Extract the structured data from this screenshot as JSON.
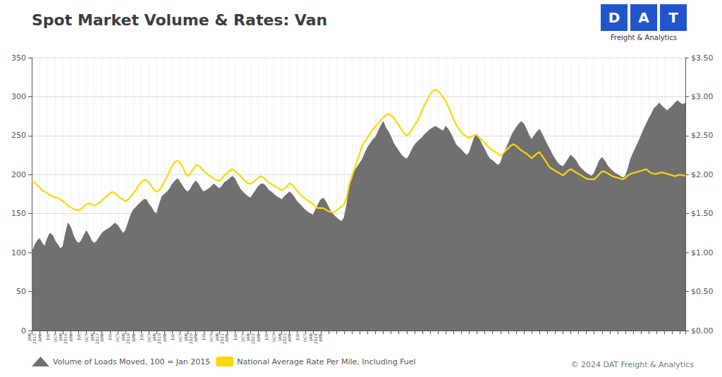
{
  "chart_data": {
    "type": "line",
    "title": "Spot Market Volume & Rates: Van",
    "categories": [
      "JAN\n2015",
      null,
      null,
      "APR",
      null,
      null,
      "JUL",
      null,
      null,
      "OCT",
      null,
      null,
      "JAN\n2016",
      null,
      null,
      "APR",
      null,
      null,
      "JUL",
      null,
      null,
      "OCT",
      null,
      null,
      "JAN\n2017",
      null,
      null,
      "APR",
      null,
      null,
      "JUL",
      null,
      null,
      "OCT",
      null,
      null,
      "JAN\n2018",
      null,
      null,
      "APR",
      null,
      null,
      "JUL",
      null,
      null,
      "OCT",
      null,
      null,
      "JAN\n2019",
      null,
      null,
      "APR",
      null,
      null,
      "JUL",
      null,
      null,
      "OCT",
      null,
      null,
      "JAN\n2020",
      null,
      null,
      "APR",
      null,
      null,
      "JUL",
      null,
      null,
      "OCT",
      null,
      null,
      "JAN\n2021",
      null,
      null,
      "APR",
      null,
      null,
      "JUL",
      null,
      null,
      "OCT",
      null,
      null,
      "JAN\n2022",
      null,
      null,
      "APR",
      null,
      null,
      "JUL",
      null,
      null,
      "OCT",
      null,
      null,
      "JAN\n2023",
      null,
      null,
      "APR",
      null,
      null,
      "JUL",
      null,
      null,
      "OCT",
      null,
      null,
      "JAN\n2024",
      null,
      null,
      "APR",
      null,
      null,
      null,
      null,
      null,
      null,
      null,
      null,
      null,
      null,
      null,
      null,
      null,
      null,
      null,
      null,
      null,
      null,
      null,
      null,
      null,
      null,
      null,
      null,
      null,
      null,
      null,
      null,
      null,
      null,
      null,
      null,
      null,
      null,
      null,
      null,
      null,
      null,
      null,
      null,
      null,
      null,
      null,
      null,
      null,
      null,
      null,
      null,
      null,
      null,
      null,
      null,
      null,
      null,
      null,
      null,
      null,
      null,
      null,
      null,
      null,
      null,
      null,
      null,
      null,
      null,
      null,
      null,
      null,
      null,
      null,
      null,
      null,
      null,
      null,
      null,
      null,
      null,
      null,
      null,
      null,
      null,
      null,
      null,
      null,
      null,
      null,
      null,
      null,
      null,
      null,
      null,
      null,
      null,
      null,
      null,
      null,
      null,
      null,
      null,
      null,
      null,
      null,
      null,
      null,
      null,
      null,
      null,
      null,
      null,
      null,
      null,
      null,
      null,
      null,
      null,
      null,
      null,
      null,
      null,
      null,
      null,
      null,
      null,
      null,
      null,
      null,
      null,
      null,
      null,
      null,
      null,
      null,
      null,
      null,
      null,
      null,
      null,
      null,
      null
    ],
    "series": [
      {
        "name": "Volume of Loads Moved, 100 = Jan 2015",
        "type": "area",
        "color": "#707070",
        "values": [
          100,
          108,
          115,
          118,
          112,
          108,
          118,
          125,
          122,
          115,
          110,
          105,
          108,
          125,
          138,
          132,
          122,
          115,
          112,
          115,
          122,
          128,
          122,
          115,
          112,
          115,
          120,
          125,
          128,
          130,
          132,
          135,
          138,
          135,
          130,
          125,
          128,
          138,
          148,
          155,
          158,
          162,
          165,
          168,
          168,
          162,
          158,
          152,
          150,
          162,
          172,
          175,
          178,
          182,
          188,
          192,
          195,
          190,
          185,
          180,
          178,
          182,
          188,
          192,
          188,
          182,
          178,
          180,
          182,
          185,
          188,
          185,
          182,
          185,
          190,
          192,
          195,
          198,
          195,
          188,
          182,
          178,
          175,
          172,
          170,
          175,
          180,
          185,
          188,
          188,
          185,
          180,
          178,
          175,
          172,
          170,
          168,
          172,
          175,
          178,
          175,
          170,
          165,
          162,
          158,
          155,
          152,
          150,
          148,
          155,
          162,
          168,
          170,
          165,
          158,
          152,
          148,
          145,
          142,
          140,
          145,
          162,
          185,
          198,
          205,
          210,
          215,
          220,
          228,
          235,
          240,
          245,
          248,
          255,
          262,
          268,
          260,
          255,
          248,
          240,
          235,
          230,
          225,
          222,
          220,
          225,
          232,
          238,
          242,
          245,
          248,
          252,
          255,
          258,
          260,
          262,
          260,
          258,
          256,
          262,
          258,
          252,
          245,
          238,
          235,
          232,
          228,
          225,
          228,
          238,
          248,
          252,
          245,
          238,
          232,
          225,
          220,
          218,
          215,
          212,
          215,
          225,
          232,
          240,
          248,
          255,
          260,
          265,
          268,
          265,
          258,
          250,
          245,
          250,
          255,
          258,
          252,
          245,
          238,
          232,
          225,
          220,
          215,
          212,
          210,
          215,
          220,
          225,
          222,
          218,
          212,
          208,
          205,
          202,
          200,
          198,
          202,
          210,
          218,
          222,
          218,
          212,
          208,
          205,
          202,
          200,
          198,
          196,
          198,
          208,
          220,
          228,
          235,
          242,
          250,
          258,
          265,
          272,
          278,
          285,
          288,
          292,
          288,
          285,
          282,
          285,
          288,
          292,
          295,
          292,
          290,
          292
        ]
      },
      {
        "name": "National Average Rate Per Mile, Including Fuel",
        "type": "line",
        "color": "#FFD700",
        "axis": "y2",
        "values": [
          1.92,
          1.9,
          1.87,
          1.84,
          1.8,
          1.78,
          1.76,
          1.74,
          1.72,
          1.71,
          1.7,
          1.68,
          1.66,
          1.63,
          1.6,
          1.58,
          1.56,
          1.55,
          1.54,
          1.56,
          1.59,
          1.62,
          1.63,
          1.62,
          1.6,
          1.62,
          1.64,
          1.67,
          1.7,
          1.73,
          1.76,
          1.78,
          1.76,
          1.73,
          1.7,
          1.68,
          1.66,
          1.68,
          1.72,
          1.76,
          1.8,
          1.86,
          1.9,
          1.93,
          1.93,
          1.9,
          1.85,
          1.8,
          1.78,
          1.8,
          1.85,
          1.92,
          1.97,
          2.05,
          2.12,
          2.16,
          2.18,
          2.15,
          2.1,
          2.02,
          1.98,
          2.02,
          2.07,
          2.12,
          2.12,
          2.09,
          2.05,
          2.02,
          1.99,
          1.97,
          1.95,
          1.93,
          1.92,
          1.95,
          1.99,
          2.02,
          2.05,
          2.07,
          2.05,
          2.02,
          1.99,
          1.95,
          1.92,
          1.89,
          1.88,
          1.9,
          1.93,
          1.96,
          1.98,
          1.96,
          1.93,
          1.9,
          1.88,
          1.86,
          1.84,
          1.82,
          1.8,
          1.82,
          1.85,
          1.89,
          1.87,
          1.83,
          1.79,
          1.75,
          1.72,
          1.69,
          1.67,
          1.65,
          1.62,
          1.59,
          1.57,
          1.57,
          1.57,
          1.55,
          1.53,
          1.52,
          1.52,
          1.54,
          1.57,
          1.59,
          1.62,
          1.72,
          1.88,
          1.98,
          2.08,
          2.18,
          2.28,
          2.38,
          2.43,
          2.48,
          2.53,
          2.58,
          2.62,
          2.65,
          2.7,
          2.73,
          2.76,
          2.78,
          2.76,
          2.73,
          2.68,
          2.63,
          2.58,
          2.53,
          2.5,
          2.53,
          2.58,
          2.63,
          2.68,
          2.75,
          2.83,
          2.9,
          2.96,
          3.03,
          3.07,
          3.09,
          3.07,
          3.04,
          2.99,
          2.94,
          2.87,
          2.79,
          2.71,
          2.64,
          2.59,
          2.54,
          2.51,
          2.49,
          2.47,
          2.49,
          2.51,
          2.51,
          2.47,
          2.44,
          2.41,
          2.37,
          2.34,
          2.31,
          2.29,
          2.27,
          2.24,
          2.27,
          2.31,
          2.34,
          2.37,
          2.39,
          2.37,
          2.34,
          2.31,
          2.29,
          2.27,
          2.24,
          2.21,
          2.24,
          2.27,
          2.29,
          2.24,
          2.19,
          2.14,
          2.09,
          2.07,
          2.05,
          2.03,
          2.01,
          1.99,
          2.02,
          2.05,
          2.07,
          2.05,
          2.03,
          2.01,
          1.99,
          1.97,
          1.95,
          1.94,
          1.94,
          1.94,
          1.97,
          2.01,
          2.04,
          2.04,
          2.02,
          2.0,
          1.98,
          1.97,
          1.96,
          1.95,
          1.94,
          1.96,
          1.99,
          2.01,
          2.02,
          2.03,
          2.04,
          2.05,
          2.06,
          2.07,
          2.04,
          2.02,
          2.01,
          2.01,
          2.02,
          2.03,
          2.02,
          2.01,
          2.0,
          1.99,
          1.98,
          1.99,
          2.0,
          1.99,
          1.99
        ]
      }
    ],
    "ylim": [
      0,
      350
    ],
    "yticks": [
      0,
      50,
      100,
      150,
      200,
      250,
      300,
      350
    ],
    "y2lim": [
      0.0,
      3.5
    ],
    "y2ticks": [
      {
        "value": 0.0,
        "label": "$0.00"
      },
      {
        "value": 0.5,
        "label": "$0.50"
      },
      {
        "value": 1.0,
        "label": "$1.00"
      },
      {
        "value": 1.5,
        "label": "$1.50"
      },
      {
        "value": 2.0,
        "label": "$2.00"
      },
      {
        "value": 2.5,
        "label": "$2.50"
      },
      {
        "value": 3.0,
        "label": "$3.00"
      },
      {
        "value": 3.5,
        "label": "$3.50"
      }
    ],
    "grid": true,
    "legend": "bottom",
    "annotations": [
      {
        "text": "D",
        "color": "#2255CC"
      },
      {
        "text": "A",
        "color": "#2255CC"
      },
      {
        "text": "T",
        "color": "#2255CC"
      },
      {
        "text": "Freight & Analytics"
      },
      {
        "text": "© 2024 DAT Freight & Analytics"
      }
    ]
  }
}
